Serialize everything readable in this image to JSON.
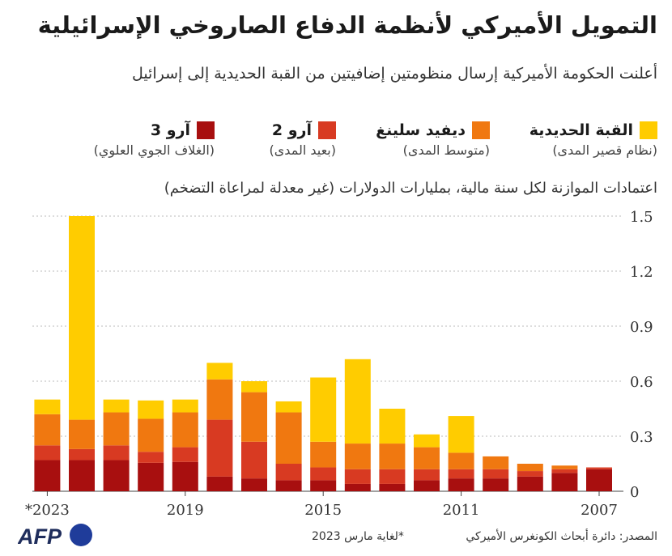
{
  "header": {
    "title": "التمويل الأميركي لأنظمة الدفاع الصاروخي الإسرائيلية",
    "subtitle": "أعلنت الحكومة الأميركية إرسال منظومتين إضافيتين من القبة الحديدية إلى إسرائيل"
  },
  "legend": [
    {
      "name": "القبة الحديدية",
      "desc": "(نظام قصير المدى)",
      "color": "#ffcc00"
    },
    {
      "name": "ديفيد سلينغ",
      "desc": "(متوسط المدى)",
      "color": "#f07810"
    },
    {
      "name": "آرو 2",
      "desc": "(بعيد المدى)",
      "color": "#d83a22"
    },
    {
      "name": "آرو 3",
      "desc": "(الغلاف الجوي العلوي)",
      "color": "#a80f0f"
    }
  ],
  "axis_caption": "اعتمادات الموازنة لكل سنة مالية، بمليارات الدولارات (غير معدلة لمراعاة التضخم)",
  "chart_data": {
    "type": "bar",
    "stacked": true,
    "x_direction": "right-to-left",
    "categories": [
      "2007",
      "2008",
      "2009",
      "2010",
      "2011",
      "2012",
      "2013",
      "2014",
      "2015",
      "2016",
      "2017",
      "2018",
      "2019",
      "2020",
      "2021",
      "2022",
      "2023*"
    ],
    "x_tick_labels": {
      "2007": "2007",
      "2011": "2011",
      "2015": "2015",
      "2019": "2019",
      "2023*": "*2023"
    },
    "series": [
      {
        "name": "آرو 3",
        "color": "#a80f0f",
        "values": [
          0.12,
          0.1,
          0.08,
          0.07,
          0.07,
          0.06,
          0.04,
          0.04,
          0.06,
          0.06,
          0.07,
          0.08,
          0.16,
          0.155,
          0.17,
          0.17,
          0.17
        ]
      },
      {
        "name": "آرو 2",
        "color": "#d83a22",
        "values": [
          0.01,
          0.02,
          0.03,
          0.05,
          0.05,
          0.06,
          0.08,
          0.08,
          0.07,
          0.09,
          0.2,
          0.31,
          0.08,
          0.06,
          0.08,
          0.06,
          0.08
        ]
      },
      {
        "name": "ديفيد سلينغ",
        "color": "#f07810",
        "values": [
          0.0,
          0.02,
          0.04,
          0.07,
          0.09,
          0.12,
          0.14,
          0.14,
          0.14,
          0.28,
          0.27,
          0.22,
          0.19,
          0.18,
          0.18,
          0.16,
          0.17
        ]
      },
      {
        "name": "القبة الحديدية",
        "color": "#ffcc00",
        "values": [
          0.0,
          0.0,
          0.0,
          0.0,
          0.2,
          0.07,
          0.19,
          0.46,
          0.35,
          0.06,
          0.06,
          0.09,
          0.07,
          0.1,
          0.07,
          1.11,
          0.08
        ]
      }
    ],
    "yticks": [
      "0",
      "0.3",
      "0.6",
      "0.9",
      "1.2",
      "1.5"
    ],
    "ylim": [
      0,
      1.5
    ],
    "grid": true
  },
  "footer": {
    "source": "المصدر: دائرة أبحاث الكونغرس الأميركي",
    "note": "*لغاية مارس 2023",
    "logo_text": "AFP"
  }
}
